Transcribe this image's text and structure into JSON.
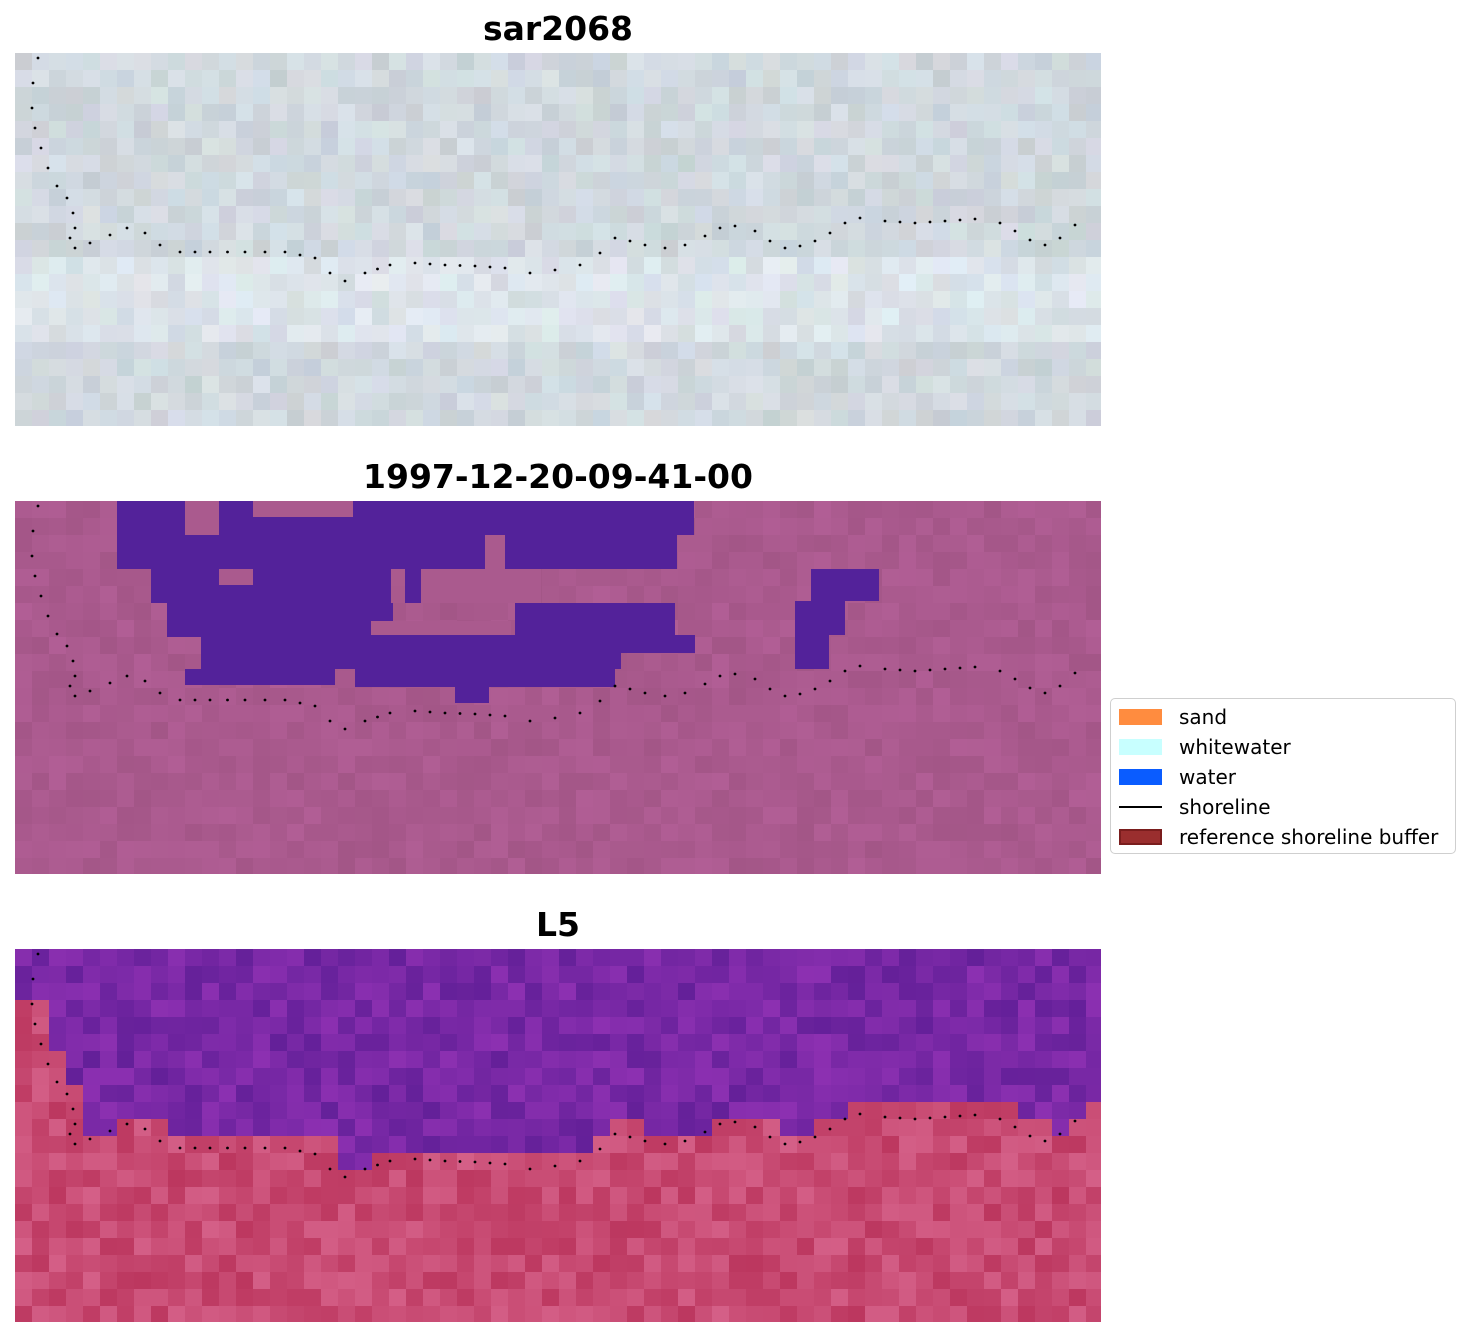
{
  "panels": [
    {
      "title": "sar2068",
      "style": "rgb-pale"
    },
    {
      "title": "1997-12-20-09-41-00",
      "style": "classified"
    },
    {
      "title": "L5",
      "style": "index"
    }
  ],
  "legend": {
    "items": [
      {
        "label": "sand",
        "kind": "patch",
        "color": "#ff8c3f"
      },
      {
        "label": "whitewater",
        "kind": "patch",
        "color": "#c8ffff"
      },
      {
        "label": "water",
        "kind": "patch",
        "color": "#0a5cff"
      },
      {
        "label": "shoreline",
        "kind": "line",
        "color": "#000000"
      },
      {
        "label": "reference shoreline buffer",
        "kind": "patch",
        "color": "#9a2e2e",
        "edge": "#7a1d1d"
      }
    ]
  },
  "colors": {
    "classified_background": "#aa5a8e",
    "classified_water": "#53229a",
    "shoreline_dots": "#000000"
  }
}
